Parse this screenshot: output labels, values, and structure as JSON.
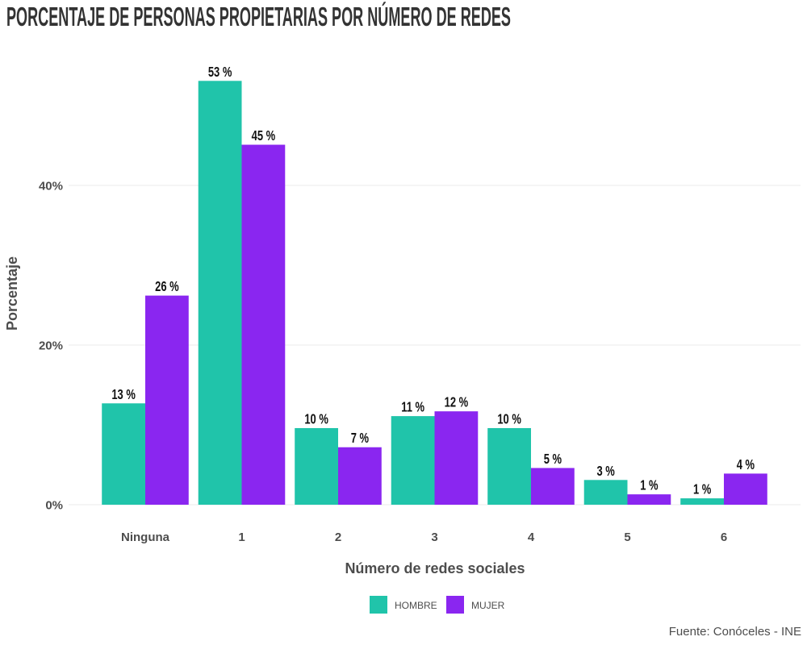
{
  "chart_data": {
    "type": "bar",
    "title": "PORCENTAJE DE PERSONAS PROPIETARIAS POR NÚMERO DE REDES",
    "xlabel": "Número de redes sociales",
    "ylabel": "Porcentaje",
    "caption": "Fuente: Conóceles - INE",
    "categories": [
      "Ninguna",
      "1",
      "2",
      "3",
      "4",
      "5",
      "6"
    ],
    "series": [
      {
        "name": "HOMBRE",
        "color": "#20c4aa",
        "values": [
          12.7,
          53.1,
          9.6,
          11.1,
          9.6,
          3.1,
          0.8
        ],
        "labels": [
          "13 %",
          "53 %",
          "10 %",
          "11 %",
          "10 %",
          "3 %",
          "1 %"
        ]
      },
      {
        "name": "MUJER",
        "color": "#8a26f0",
        "values": [
          26.2,
          45.1,
          7.2,
          11.7,
          4.6,
          1.3,
          3.9
        ],
        "labels": [
          "26 %",
          "45 %",
          "7 %",
          "12 %",
          "5 %",
          "1 %",
          "4 %"
        ]
      }
    ],
    "ylim": [
      0,
      56
    ],
    "yticks": [
      0,
      20,
      40
    ],
    "ytick_labels": [
      "0%",
      "20%",
      "40%"
    ],
    "grid": true,
    "legend": "bottom"
  }
}
